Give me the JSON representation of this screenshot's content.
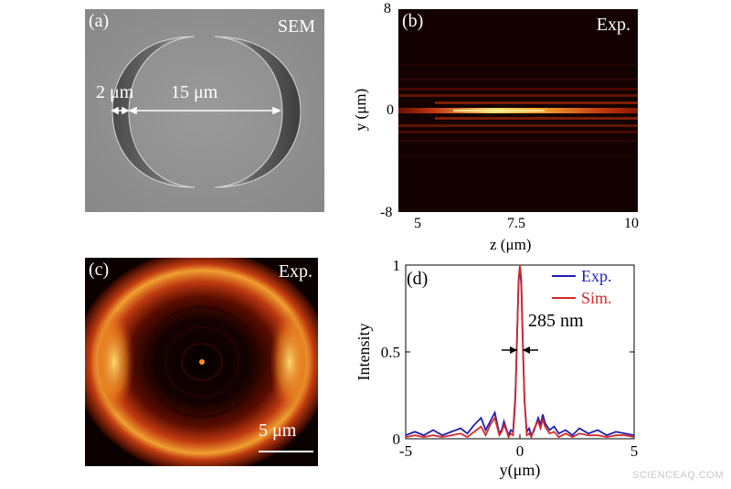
{
  "panel_a": {
    "label": "(a)",
    "tag": "SEM",
    "dim_small": "2 μm",
    "dim_large": "15 μm"
  },
  "panel_b": {
    "label": "(b)",
    "tag": "Exp.",
    "xlabel": "z (μm)",
    "ylabel": "y (μm)",
    "xticks": [
      "5",
      "7.5",
      "10"
    ],
    "yticks": [
      "8",
      "0",
      "-8"
    ]
  },
  "panel_c": {
    "label": "(c)",
    "tag": "Exp.",
    "scalebar": "5 μm"
  },
  "panel_d": {
    "label": "(d)",
    "annotation": "285 nm"
  },
  "watermark": "SCIENCEAQ.COM",
  "colors": {
    "exp": "#1f1fb4",
    "sim": "#d42a2a",
    "heat_hot": "#ffe070",
    "heat_mid": "#c03010",
    "heat_dark": "#1a0400"
  },
  "chart_data": {
    "type": "line",
    "title": "",
    "xlabel": "y(μm)",
    "ylabel": "Intensity",
    "xlim": [
      -5,
      5
    ],
    "ylim": [
      0,
      1
    ],
    "xticks": [
      -5,
      0,
      5
    ],
    "yticks": [
      0,
      0.5,
      1
    ],
    "legend": "top-right",
    "series": [
      {
        "name": "Exp.",
        "color": "#1f1fb4",
        "x": [
          -5,
          -4.6,
          -4.2,
          -3.8,
          -3.4,
          -3.0,
          -2.6,
          -2.3,
          -2.0,
          -1.7,
          -1.5,
          -1.3,
          -1.1,
          -1.0,
          -0.9,
          -0.8,
          -0.7,
          -0.6,
          -0.5,
          -0.4,
          -0.3,
          -0.2,
          -0.12,
          -0.06,
          0,
          0.06,
          0.12,
          0.2,
          0.3,
          0.4,
          0.5,
          0.6,
          0.7,
          0.8,
          0.9,
          1.0,
          1.1,
          1.3,
          1.5,
          1.7,
          2.0,
          2.3,
          2.6,
          3.0,
          3.4,
          3.8,
          4.2,
          4.6,
          5
        ],
        "y": [
          0.02,
          0.04,
          0.02,
          0.05,
          0.02,
          0.04,
          0.06,
          0.03,
          0.08,
          0.12,
          0.05,
          0.1,
          0.15,
          0.09,
          0.03,
          0.05,
          0.1,
          0.06,
          0.02,
          0.05,
          0.04,
          0.25,
          0.62,
          0.9,
          0.99,
          0.88,
          0.58,
          0.22,
          0.04,
          0.06,
          0.02,
          0.04,
          0.08,
          0.12,
          0.08,
          0.14,
          0.09,
          0.05,
          0.07,
          0.03,
          0.05,
          0.02,
          0.06,
          0.03,
          0.05,
          0.02,
          0.04,
          0.03,
          0.02
        ]
      },
      {
        "name": "Sim.",
        "color": "#d42a2a",
        "x": [
          -5,
          -4.6,
          -4.2,
          -3.8,
          -3.4,
          -3.0,
          -2.6,
          -2.3,
          -2.0,
          -1.7,
          -1.5,
          -1.3,
          -1.1,
          -1.0,
          -0.9,
          -0.8,
          -0.7,
          -0.6,
          -0.5,
          -0.4,
          -0.3,
          -0.2,
          -0.12,
          -0.06,
          0,
          0.06,
          0.12,
          0.2,
          0.3,
          0.4,
          0.5,
          0.6,
          0.7,
          0.8,
          0.9,
          1.0,
          1.1,
          1.3,
          1.5,
          1.7,
          2.0,
          2.3,
          2.6,
          3.0,
          3.4,
          3.8,
          4.2,
          4.6,
          5
        ],
        "y": [
          0.01,
          0.02,
          0.01,
          0.02,
          0.01,
          0.02,
          0.03,
          0.01,
          0.04,
          0.07,
          0.02,
          0.08,
          0.12,
          0.07,
          0.02,
          0.04,
          0.08,
          0.05,
          0.01,
          0.03,
          0.02,
          0.22,
          0.6,
          0.92,
          1.0,
          0.92,
          0.6,
          0.22,
          0.02,
          0.03,
          0.01,
          0.05,
          0.08,
          0.1,
          0.06,
          0.11,
          0.07,
          0.03,
          0.04,
          0.01,
          0.03,
          0.01,
          0.03,
          0.02,
          0.02,
          0.01,
          0.02,
          0.02,
          0.01
        ]
      }
    ]
  }
}
